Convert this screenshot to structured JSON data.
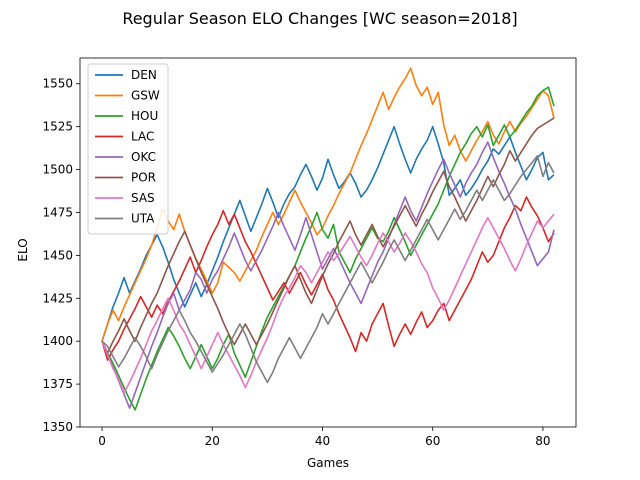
{
  "chart_data": {
    "type": "line",
    "title": "Regular Season ELO Changes [WC season=2018]",
    "xlabel": "Games",
    "ylabel": "ELO",
    "xlim": [
      -4,
      86
    ],
    "ylim": [
      1350,
      1565
    ],
    "xticks": [
      0,
      20,
      40,
      60,
      80
    ],
    "yticks": [
      1350,
      1375,
      1400,
      1425,
      1450,
      1475,
      1500,
      1525,
      1550
    ],
    "grid": false,
    "legend_position": "top-left",
    "series": [
      {
        "name": "DEN",
        "color": "#1f77b4",
        "values": [
          1400,
          1410,
          1420,
          1428,
          1437,
          1428,
          1435,
          1442,
          1450,
          1456,
          1462,
          1455,
          1446,
          1436,
          1428,
          1420,
          1427,
          1434,
          1426,
          1433,
          1441,
          1449,
          1458,
          1466,
          1474,
          1482,
          1473,
          1464,
          1472,
          1480,
          1489,
          1481,
          1472,
          1480,
          1486,
          1490,
          1497,
          1503,
          1496,
          1488,
          1495,
          1506,
          1497,
          1489,
          1493,
          1498,
          1492,
          1484,
          1488,
          1494,
          1501,
          1509,
          1517,
          1525,
          1515,
          1506,
          1498,
          1506,
          1512,
          1517,
          1525,
          1515,
          1504,
          1485,
          1489,
          1494,
          1485,
          1489,
          1494,
          1500,
          1505,
          1512,
          1509,
          1514,
          1519,
          1510,
          1502,
          1494,
          1500,
          1507,
          1510,
          1494,
          1497
        ]
      },
      {
        "name": "GSW",
        "color": "#ff7f0e",
        "values": [
          1400,
          1410,
          1418,
          1412,
          1420,
          1427,
          1434,
          1441,
          1448,
          1456,
          1466,
          1477,
          1470,
          1465,
          1474,
          1464,
          1456,
          1448,
          1442,
          1435,
          1428,
          1434,
          1446,
          1443,
          1440,
          1435,
          1441,
          1447,
          1453,
          1461,
          1468,
          1475,
          1468,
          1474,
          1481,
          1488,
          1481,
          1475,
          1469,
          1462,
          1466,
          1473,
          1479,
          1486,
          1492,
          1498,
          1506,
          1514,
          1521,
          1529,
          1537,
          1545,
          1535,
          1542,
          1548,
          1553,
          1559,
          1549,
          1543,
          1548,
          1538,
          1545,
          1526,
          1514,
          1520,
          1511,
          1505,
          1511,
          1517,
          1522,
          1528,
          1520,
          1515,
          1522,
          1528,
          1522,
          1527,
          1531,
          1536,
          1541,
          1546,
          1543,
          1530
        ]
      },
      {
        "name": "HOU",
        "color": "#2ca02c",
        "values": [
          1400,
          1393,
          1387,
          1380,
          1373,
          1366,
          1360,
          1369,
          1378,
          1386,
          1394,
          1401,
          1408,
          1403,
          1397,
          1390,
          1384,
          1391,
          1398,
          1391,
          1384,
          1390,
          1398,
          1404,
          1393,
          1386,
          1379,
          1388,
          1397,
          1406,
          1414,
          1420,
          1426,
          1432,
          1438,
          1444,
          1452,
          1460,
          1467,
          1475,
          1465,
          1460,
          1468,
          1452,
          1446,
          1440,
          1448,
          1454,
          1460,
          1466,
          1460,
          1458,
          1464,
          1472,
          1465,
          1458,
          1450,
          1456,
          1462,
          1468,
          1474,
          1480,
          1488,
          1496,
          1503,
          1510,
          1515,
          1521,
          1525,
          1519,
          1526,
          1514,
          1520,
          1526,
          1519,
          1523,
          1528,
          1533,
          1537,
          1543,
          1546,
          1548,
          1537
        ]
      },
      {
        "name": "LAC",
        "color": "#d62728",
        "values": [
          1400,
          1389,
          1395,
          1400,
          1407,
          1413,
          1419,
          1426,
          1420,
          1414,
          1421,
          1416,
          1423,
          1429,
          1435,
          1442,
          1449,
          1440,
          1447,
          1455,
          1462,
          1468,
          1476,
          1468,
          1474,
          1466,
          1458,
          1452,
          1445,
          1438,
          1431,
          1424,
          1429,
          1434,
          1428,
          1434,
          1440,
          1433,
          1427,
          1433,
          1439,
          1430,
          1424,
          1416,
          1409,
          1402,
          1394,
          1405,
          1400,
          1410,
          1416,
          1422,
          1409,
          1397,
          1404,
          1410,
          1404,
          1411,
          1417,
          1408,
          1412,
          1418,
          1422,
          1412,
          1418,
          1424,
          1430,
          1436,
          1444,
          1452,
          1446,
          1450,
          1458,
          1466,
          1472,
          1479,
          1476,
          1484,
          1478,
          1473,
          1466,
          1458,
          1463
        ]
      },
      {
        "name": "OKC",
        "color": "#9467bd",
        "values": [
          1400,
          1392,
          1385,
          1377,
          1369,
          1361,
          1370,
          1379,
          1388,
          1397,
          1405,
          1414,
          1422,
          1428,
          1418,
          1424,
          1430,
          1440,
          1436,
          1428,
          1436,
          1441,
          1448,
          1455,
          1463,
          1455,
          1447,
          1441,
          1447,
          1453,
          1460,
          1467,
          1475,
          1467,
          1460,
          1453,
          1462,
          1472,
          1462,
          1452,
          1442,
          1448,
          1454,
          1448,
          1441,
          1434,
          1428,
          1422,
          1430,
          1438,
          1446,
          1452,
          1460,
          1468,
          1476,
          1484,
          1476,
          1470,
          1478,
          1486,
          1493,
          1500,
          1506,
          1498,
          1491,
          1484,
          1492,
          1498,
          1503,
          1510,
          1516,
          1507,
          1499,
          1492,
          1484,
          1477,
          1468,
          1460,
          1452,
          1444,
          1448,
          1452,
          1465
        ]
      },
      {
        "name": "POR",
        "color": "#8c564b",
        "values": [
          1400,
          1393,
          1400,
          1406,
          1413,
          1406,
          1400,
          1408,
          1415,
          1422,
          1428,
          1436,
          1444,
          1451,
          1458,
          1464,
          1456,
          1448,
          1440,
          1433,
          1426,
          1419,
          1411,
          1404,
          1398,
          1404,
          1410,
          1404,
          1398,
          1404,
          1410,
          1417,
          1424,
          1431,
          1438,
          1444,
          1436,
          1428,
          1422,
          1430,
          1438,
          1445,
          1451,
          1458,
          1464,
          1470,
          1462,
          1456,
          1462,
          1468,
          1461,
          1455,
          1461,
          1467,
          1473,
          1479,
          1473,
          1467,
          1474,
          1480,
          1487,
          1493,
          1499,
          1490,
          1484,
          1477,
          1470,
          1476,
          1482,
          1489,
          1496,
          1490,
          1497,
          1503,
          1511,
          1505,
          1510,
          1515,
          1520,
          1524,
          1526,
          1528,
          1530
        ]
      },
      {
        "name": "SAS",
        "color": "#e377c2",
        "values": [
          1400,
          1392,
          1384,
          1378,
          1370,
          1376,
          1383,
          1390,
          1398,
          1406,
          1412,
          1419,
          1425,
          1418,
          1410,
          1405,
          1398,
          1391,
          1384,
          1391,
          1398,
          1405,
          1398,
          1392,
          1386,
          1380,
          1373,
          1380,
          1388,
          1395,
          1402,
          1410,
          1419,
          1426,
          1431,
          1437,
          1444,
          1440,
          1434,
          1440,
          1446,
          1452,
          1447,
          1451,
          1456,
          1461,
          1455,
          1449,
          1444,
          1450,
          1457,
          1463,
          1458,
          1452,
          1457,
          1463,
          1458,
          1452,
          1445,
          1440,
          1431,
          1425,
          1418,
          1424,
          1431,
          1438,
          1445,
          1452,
          1459,
          1466,
          1472,
          1466,
          1460,
          1454,
          1447,
          1441,
          1448,
          1456,
          1463,
          1470,
          1466,
          1470,
          1474
        ]
      },
      {
        "name": "UTA",
        "color": "#7f7f7f",
        "values": [
          1400,
          1397,
          1391,
          1385,
          1390,
          1396,
          1402,
          1397,
          1391,
          1384,
          1392,
          1399,
          1406,
          1412,
          1418,
          1412,
          1405,
          1400,
          1394,
          1388,
          1382,
          1387,
          1392,
          1398,
          1404,
          1410,
          1404,
          1396,
          1388,
          1382,
          1376,
          1382,
          1390,
          1396,
          1402,
          1396,
          1390,
          1396,
          1402,
          1408,
          1416,
          1410,
          1416,
          1422,
          1428,
          1434,
          1440,
          1446,
          1440,
          1434,
          1440,
          1446,
          1453,
          1459,
          1453,
          1447,
          1453,
          1459,
          1465,
          1471,
          1465,
          1459,
          1465,
          1471,
          1477,
          1471,
          1476,
          1482,
          1488,
          1482,
          1488,
          1494,
          1488,
          1482,
          1486,
          1491,
          1496,
          1500,
          1504,
          1508,
          1496,
          1504,
          1498
        ]
      }
    ]
  }
}
